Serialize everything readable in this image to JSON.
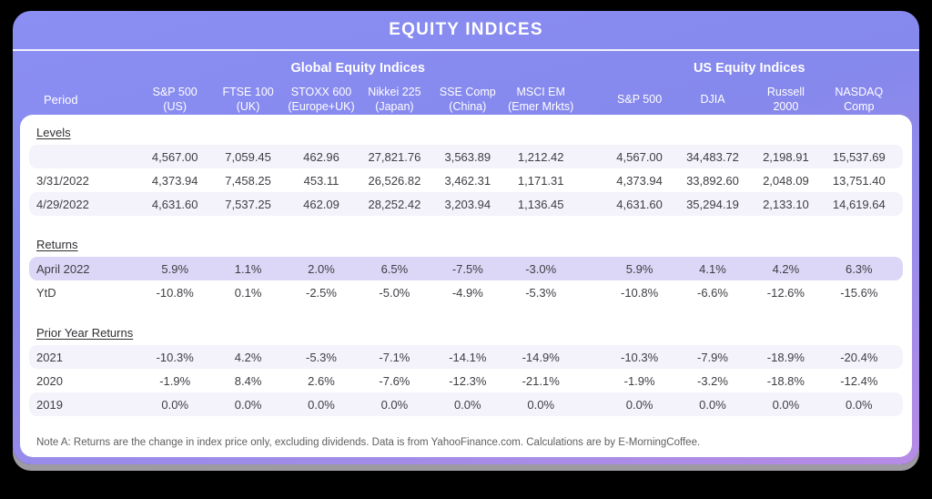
{
  "theme": {
    "page_background": "#000000",
    "card_gradient_top": "#8b8ef3",
    "card_gradient_bottom": "#b68be5",
    "stripe_color": "#f4f2fa",
    "highlight_row_color": "#dcd7f6",
    "header_text_color": "#ffffff"
  },
  "chart_data": {
    "type": "table",
    "title": "EQUITY INDICES",
    "period_label": "Period",
    "groups": [
      {
        "label": "Global Equity Indices",
        "span": 6
      },
      {
        "label": "US Equity Indices",
        "span": 4
      }
    ],
    "columns": [
      {
        "line1": "S&P 500",
        "line2": "(US)"
      },
      {
        "line1": "FTSE 100",
        "line2": "(UK)"
      },
      {
        "line1": "STOXX 600",
        "line2": "(Europe+UK)"
      },
      {
        "line1": "Nikkei 225",
        "line2": "(Japan)"
      },
      {
        "line1": "SSE Comp",
        "line2": "(China)"
      },
      {
        "line1": "MSCI EM",
        "line2": "(Emer Mrkts)"
      },
      {
        "line1": "S&P 500",
        "line2": ""
      },
      {
        "line1": "DJIA",
        "line2": ""
      },
      {
        "line1": "Russell",
        "line2": "2000"
      },
      {
        "line1": "NASDAQ",
        "line2": "Comp"
      }
    ],
    "sections": [
      {
        "label": "Levels",
        "rows": [
          {
            "period": "",
            "highlight": false,
            "values": [
              "4,567.00",
              "7,059.45",
              "462.96",
              "27,821.76",
              "3,563.89",
              "1,212.42",
              "4,567.00",
              "34,483.72",
              "2,198.91",
              "15,537.69"
            ]
          },
          {
            "period": "3/31/2022",
            "highlight": false,
            "values": [
              "4,373.94",
              "7,458.25",
              "453.11",
              "26,526.82",
              "3,462.31",
              "1,171.31",
              "4,373.94",
              "33,892.60",
              "2,048.09",
              "13,751.40"
            ]
          },
          {
            "period": "4/29/2022",
            "highlight": false,
            "values": [
              "4,631.60",
              "7,537.25",
              "462.09",
              "28,252.42",
              "3,203.94",
              "1,136.45",
              "4,631.60",
              "35,294.19",
              "2,133.10",
              "14,619.64"
            ]
          }
        ]
      },
      {
        "label": "Returns",
        "rows": [
          {
            "period": "April 2022",
            "highlight": true,
            "values": [
              "5.9%",
              "1.1%",
              "2.0%",
              "6.5%",
              "-7.5%",
              "-3.0%",
              "5.9%",
              "4.1%",
              "4.2%",
              "6.3%"
            ]
          },
          {
            "period": "YtD",
            "highlight": false,
            "values": [
              "-10.8%",
              "0.1%",
              "-2.5%",
              "-5.0%",
              "-4.9%",
              "-5.3%",
              "-10.8%",
              "-6.6%",
              "-12.6%",
              "-15.6%"
            ]
          }
        ]
      },
      {
        "label": "Prior Year Returns",
        "rows": [
          {
            "period": "2021",
            "highlight": false,
            "values": [
              "-10.3%",
              "4.2%",
              "-5.3%",
              "-7.1%",
              "-14.1%",
              "-14.9%",
              "-10.3%",
              "-7.9%",
              "-18.9%",
              "-20.4%"
            ]
          },
          {
            "period": "2020",
            "highlight": false,
            "values": [
              "-1.9%",
              "8.4%",
              "2.6%",
              "-7.6%",
              "-12.3%",
              "-21.1%",
              "-1.9%",
              "-3.2%",
              "-18.8%",
              "-12.4%"
            ]
          },
          {
            "period": "2019",
            "highlight": false,
            "values": [
              "0.0%",
              "0.0%",
              "0.0%",
              "0.0%",
              "0.0%",
              "0.0%",
              "0.0%",
              "0.0%",
              "0.0%",
              "0.0%"
            ]
          }
        ]
      }
    ],
    "note": "Note A:  Returns are the change in index price only, excluding dividends. Data is from YahooFinance.com. Calculations are by E-MorningCoffee."
  }
}
